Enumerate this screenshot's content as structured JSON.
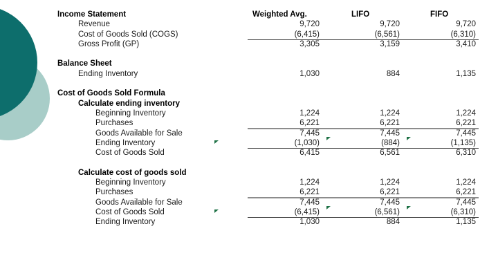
{
  "slide": {
    "background": "#ffffff"
  },
  "decor": {
    "dark_circle_color": "#0D6E6C",
    "light_circle_color": "#A8CDC8"
  },
  "table": {
    "columns": [
      "Weighted Avg.",
      "LIFO",
      "FIFO"
    ],
    "marker_color": "#1E7145",
    "rows": [
      {
        "header": true,
        "label": "Income Statement",
        "bold": true,
        "indent": 0
      },
      {
        "label": "Revenue",
        "indent": 1,
        "values": [
          "9,720",
          "9,720",
          "9,720"
        ]
      },
      {
        "label": "Cost of Goods Sold (COGS)",
        "indent": 1,
        "values": [
          "(6,415)",
          "(6,561)",
          "(6,310)"
        ],
        "underline": "dark"
      },
      {
        "label": "Gross Profit (GP)",
        "indent": 1,
        "values": [
          "3,305",
          "3,159",
          "3,410"
        ]
      },
      {
        "blank": true
      },
      {
        "label": "Balance Sheet",
        "bold": true,
        "indent": 0
      },
      {
        "label": "Ending Inventory",
        "indent": 1,
        "values": [
          "1,030",
          "884",
          "1,135"
        ]
      },
      {
        "blank": true
      },
      {
        "label": "Cost of Goods Sold Formula",
        "bold": true,
        "indent": 0
      },
      {
        "label": "Calculate ending inventory",
        "bold": true,
        "indent": 1
      },
      {
        "label": "Beginning Inventory",
        "indent": 2,
        "values": [
          "1,224",
          "1,224",
          "1,224"
        ]
      },
      {
        "label": "Purchases",
        "indent": 2,
        "values": [
          "6,221",
          "6,221",
          "6,221"
        ],
        "underline": "gray"
      },
      {
        "label": "Goods Available for Sale",
        "indent": 2,
        "values": [
          "7,445",
          "7,445",
          "7,445"
        ]
      },
      {
        "label": "Ending Inventory",
        "indent": 2,
        "values": [
          "(1,030)",
          "(884)",
          "(1,135)"
        ],
        "underline": "dark",
        "markers": true
      },
      {
        "label": "Cost of Goods Sold",
        "indent": 2,
        "values": [
          "6,415",
          "6,561",
          "6,310"
        ]
      },
      {
        "blank": true
      },
      {
        "label": "Calculate cost of goods sold",
        "bold": true,
        "indent": 1
      },
      {
        "label": "Beginning Inventory",
        "indent": 2,
        "values": [
          "1,224",
          "1,224",
          "1,224"
        ]
      },
      {
        "label": "Purchases",
        "indent": 2,
        "values": [
          "6,221",
          "6,221",
          "6,221"
        ],
        "underline": "gray"
      },
      {
        "label": "Goods Available for Sale",
        "indent": 2,
        "values": [
          "7,445",
          "7,445",
          "7,445"
        ]
      },
      {
        "label": "Cost of Goods Sold",
        "indent": 2,
        "values": [
          "(6,415)",
          "(6,561)",
          "(6,310)"
        ],
        "underline": "dark",
        "markers": true
      },
      {
        "label": "Ending Inventory",
        "indent": 2,
        "values": [
          "1,030",
          "884",
          "1,135"
        ]
      }
    ]
  }
}
